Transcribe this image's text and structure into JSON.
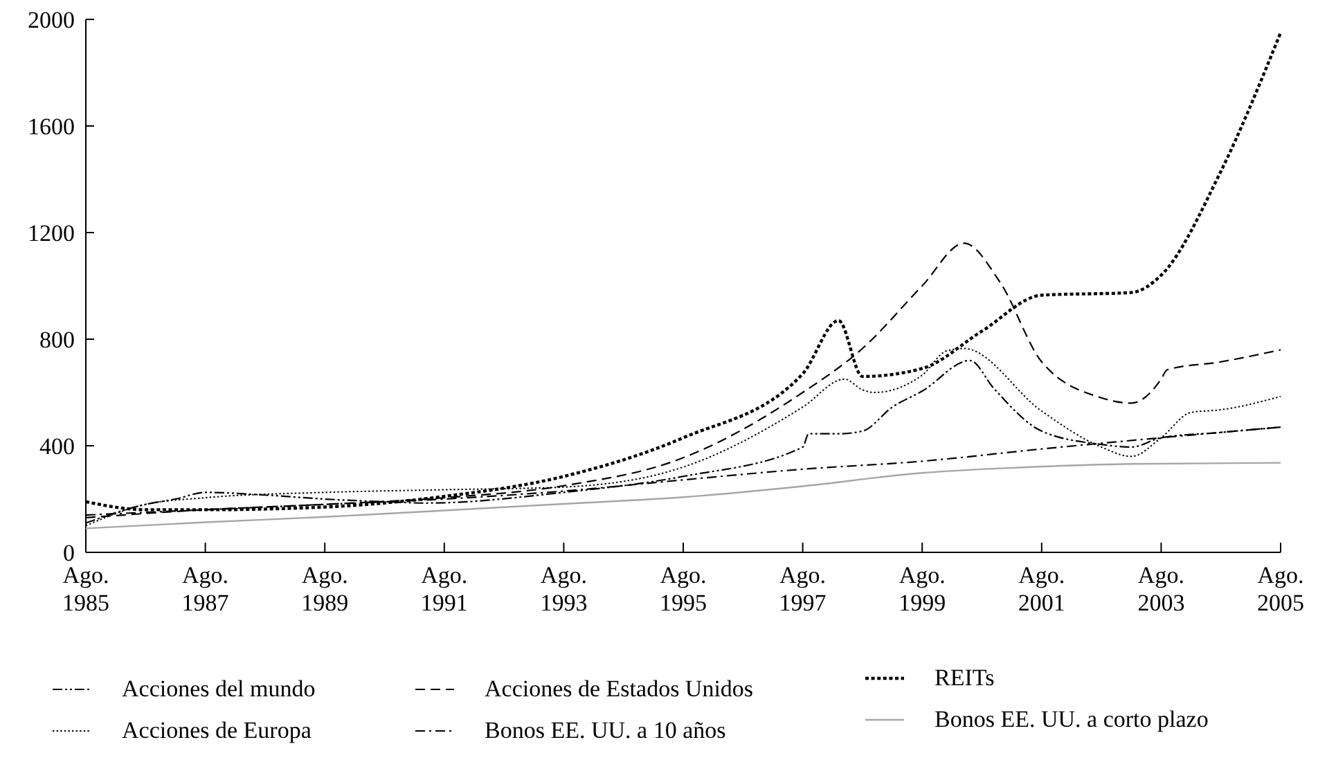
{
  "chart_data": {
    "type": "line",
    "xlim": [
      1985,
      2005
    ],
    "ylim": [
      0,
      2000
    ],
    "xticks": [
      {
        "value": 1985,
        "label": "Ago.\n1985"
      },
      {
        "value": 1987,
        "label": "Ago.\n1987"
      },
      {
        "value": 1989,
        "label": "Ago.\n1989"
      },
      {
        "value": 1991,
        "label": "Ago.\n1991"
      },
      {
        "value": 1993,
        "label": "Ago.\n1993"
      },
      {
        "value": 1995,
        "label": "Ago.\n1995"
      },
      {
        "value": 1997,
        "label": "Ago.\n1997"
      },
      {
        "value": 1999,
        "label": "Ago.\n1999"
      },
      {
        "value": 2001,
        "label": "Ago.\n2001"
      },
      {
        "value": 2003,
        "label": "Ago.\n2003"
      },
      {
        "value": 2005,
        "label": "Ago.\n2005"
      }
    ],
    "yticks": [
      0,
      400,
      800,
      1200,
      1600,
      2000
    ],
    "grid": false,
    "legend": "bottom",
    "series": [
      {
        "name": "Acciones del mundo",
        "color": "#000000",
        "line_style": "dashdotdot",
        "x": [
          1985,
          1986,
          1986.5,
          1987,
          1988,
          1989,
          1990,
          1990.7,
          1993,
          1995,
          1997,
          1997.1,
          1997.6,
          1998,
          1998.5,
          1999,
          1999.8,
          2000.2,
          2001,
          2002,
          2002.5,
          2003,
          2004,
          2005
        ],
        "values": [
          110,
          180,
          200,
          225,
          215,
          200,
          190,
          185,
          225,
          285,
          395,
          445,
          445,
          455,
          545,
          605,
          720,
          615,
          455,
          405,
          395,
          430,
          450,
          470
        ]
      },
      {
        "name": "Acciones de Europa",
        "color": "#000000",
        "line_style": "dotted",
        "x": [
          1985,
          1986,
          1987,
          1989,
          1991,
          1993,
          1995,
          1997,
          1997.7,
          1998,
          1998.2,
          1999,
          1999.4,
          1999.7,
          2001,
          2002,
          2002.5,
          2003,
          2003.5,
          2004,
          2005
        ],
        "values": [
          100,
          180,
          205,
          225,
          235,
          245,
          320,
          545,
          650,
          610,
          600,
          665,
          755,
          765,
          530,
          395,
          360,
          430,
          525,
          535,
          585
        ]
      },
      {
        "name": "Acciones de Estados Unidos",
        "color": "#000000",
        "line_style": "dashed",
        "x": [
          1985,
          1987,
          1989,
          1991,
          1993,
          1995,
          1997,
          1998,
          1999,
          1999.7,
          2000.3,
          2001,
          2002,
          2002.5,
          2003,
          2003.1,
          2004,
          2005
        ],
        "values": [
          130,
          160,
          180,
          205,
          250,
          355,
          600,
          765,
          1000,
          1160,
          1015,
          715,
          580,
          560,
          650,
          685,
          715,
          760
        ]
      },
      {
        "name": "Bonos EE. UU. a 10 años",
        "color": "#000000",
        "line_style": "dashdot",
        "x": [
          1985,
          1987,
          1989,
          1991,
          1993,
          1995,
          1997,
          1999,
          2001,
          2003,
          2005
        ],
        "values": [
          140,
          160,
          180,
          200,
          230,
          272,
          312,
          342,
          388,
          430,
          470
        ]
      },
      {
        "name": "REITs",
        "color": "#000000",
        "line_style": "dotted",
        "x": [
          1985,
          1986,
          1987,
          1989,
          1991,
          1993,
          1995,
          1997,
          1997.6,
          1998,
          1999,
          2000,
          2001,
          2002.5,
          2003,
          2004,
          2005
        ],
        "values": [
          190,
          160,
          160,
          170,
          210,
          285,
          430,
          670,
          870,
          660,
          690,
          830,
          965,
          975,
          1040,
          1430,
          1950
        ]
      },
      {
        "name": "Bonos EE. UU. a corto plazo",
        "color": "#a6a6a6",
        "line_style": "solid",
        "x": [
          1985,
          1987,
          1989,
          1991,
          1993,
          1995,
          1997,
          1999,
          2000,
          2001,
          2002.5,
          2005
        ],
        "values": [
          90,
          113,
          133,
          157,
          182,
          207,
          248,
          298,
          312,
          322,
          332,
          336
        ]
      }
    ]
  }
}
